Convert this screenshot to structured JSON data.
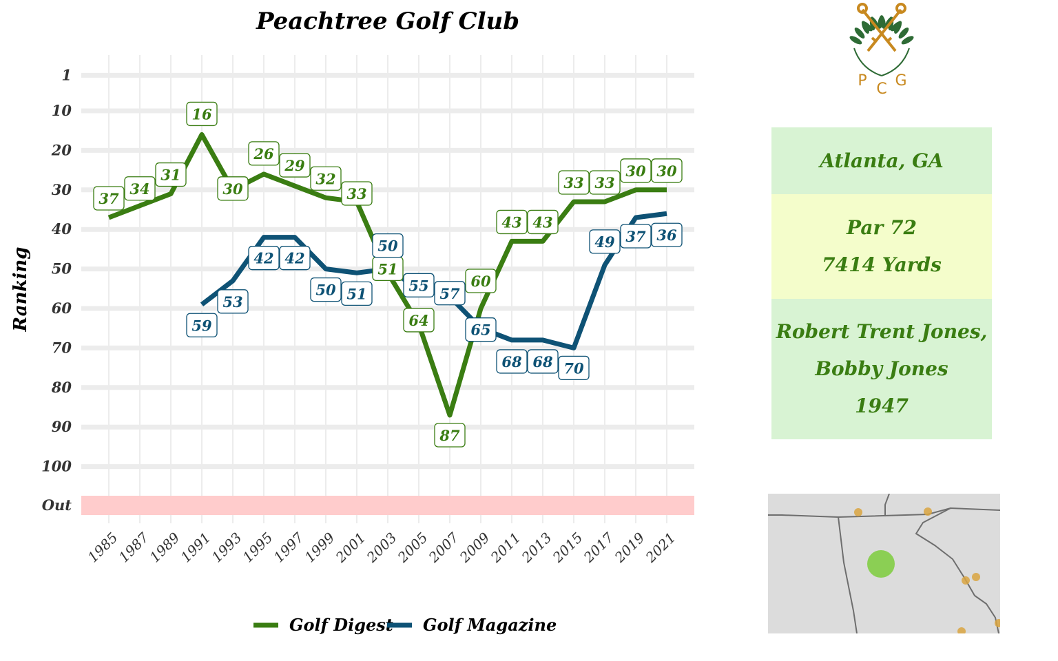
{
  "chart_data": {
    "type": "line",
    "title": "Peachtree Golf Club",
    "ylabel": "Ranking",
    "y_tick_labels": [
      "1",
      "10",
      "20",
      "30",
      "40",
      "50",
      "60",
      "70",
      "80",
      "90",
      "100",
      "Out"
    ],
    "x_tick_labels": [
      "1985",
      "1987",
      "1989",
      "1991",
      "1993",
      "1995",
      "1997",
      "1999",
      "2001",
      "2003",
      "2005",
      "2007",
      "2009",
      "2011",
      "2013",
      "2015",
      "2017",
      "2019",
      "2021"
    ],
    "y_reversed": true,
    "grid": true,
    "legend_position": "bottom",
    "series": [
      {
        "name": "Golf Digest",
        "color": "#3a7d12",
        "points": [
          {
            "x": 1985,
            "y": 37
          },
          {
            "x": 1987,
            "y": 34
          },
          {
            "x": 1989,
            "y": 31
          },
          {
            "x": 1991,
            "y": 16
          },
          {
            "x": 1993,
            "y": 30
          },
          {
            "x": 1995,
            "y": 26
          },
          {
            "x": 1997,
            "y": 29
          },
          {
            "x": 1999,
            "y": 32
          },
          {
            "x": 2001,
            "y": 33
          },
          {
            "x": 2003,
            "y": 51
          },
          {
            "x": 2005,
            "y": 64
          },
          {
            "x": 2007,
            "y": 87
          },
          {
            "x": 2009,
            "y": 60
          },
          {
            "x": 2011,
            "y": 43
          },
          {
            "x": 2013,
            "y": 43
          },
          {
            "x": 2015,
            "y": 33
          },
          {
            "x": 2017,
            "y": 33
          },
          {
            "x": 2019,
            "y": 30
          },
          {
            "x": 2021,
            "y": 30
          }
        ]
      },
      {
        "name": "Golf Magazine",
        "color": "#0e5275",
        "points": [
          {
            "x": 1991,
            "y": 59
          },
          {
            "x": 1993,
            "y": 53
          },
          {
            "x": 1995,
            "y": 42
          },
          {
            "x": 1997,
            "y": 42
          },
          {
            "x": 1999,
            "y": 50
          },
          {
            "x": 2001,
            "y": 51
          },
          {
            "x": 2003,
            "y": 50
          },
          {
            "x": 2005,
            "y": 55
          },
          {
            "x": 2007,
            "y": 57
          },
          {
            "x": 2009,
            "y": 65
          },
          {
            "x": 2011,
            "y": 68
          },
          {
            "x": 2013,
            "y": 68
          },
          {
            "x": 2015,
            "y": 70
          },
          {
            "x": 2017,
            "y": 49
          },
          {
            "x": 2019,
            "y": 37
          },
          {
            "x": 2021,
            "y": 36
          }
        ]
      }
    ],
    "out_band_color": "#ffcccc"
  },
  "info": {
    "location": "Atlanta, GA",
    "par": "Par 72",
    "yards": "7414 Yards",
    "architect_line1": "Robert Trent Jones,",
    "architect_line2": "Bobby Jones",
    "year": "1947"
  },
  "logo": {
    "letters": [
      "P",
      "C",
      "G"
    ],
    "gold": "#c8891f",
    "leaf_green": "#2e6b35"
  },
  "map": {
    "background": "#dcdcdc",
    "highlight_color": "#7dcc3c",
    "other_color": "#d9a441"
  }
}
